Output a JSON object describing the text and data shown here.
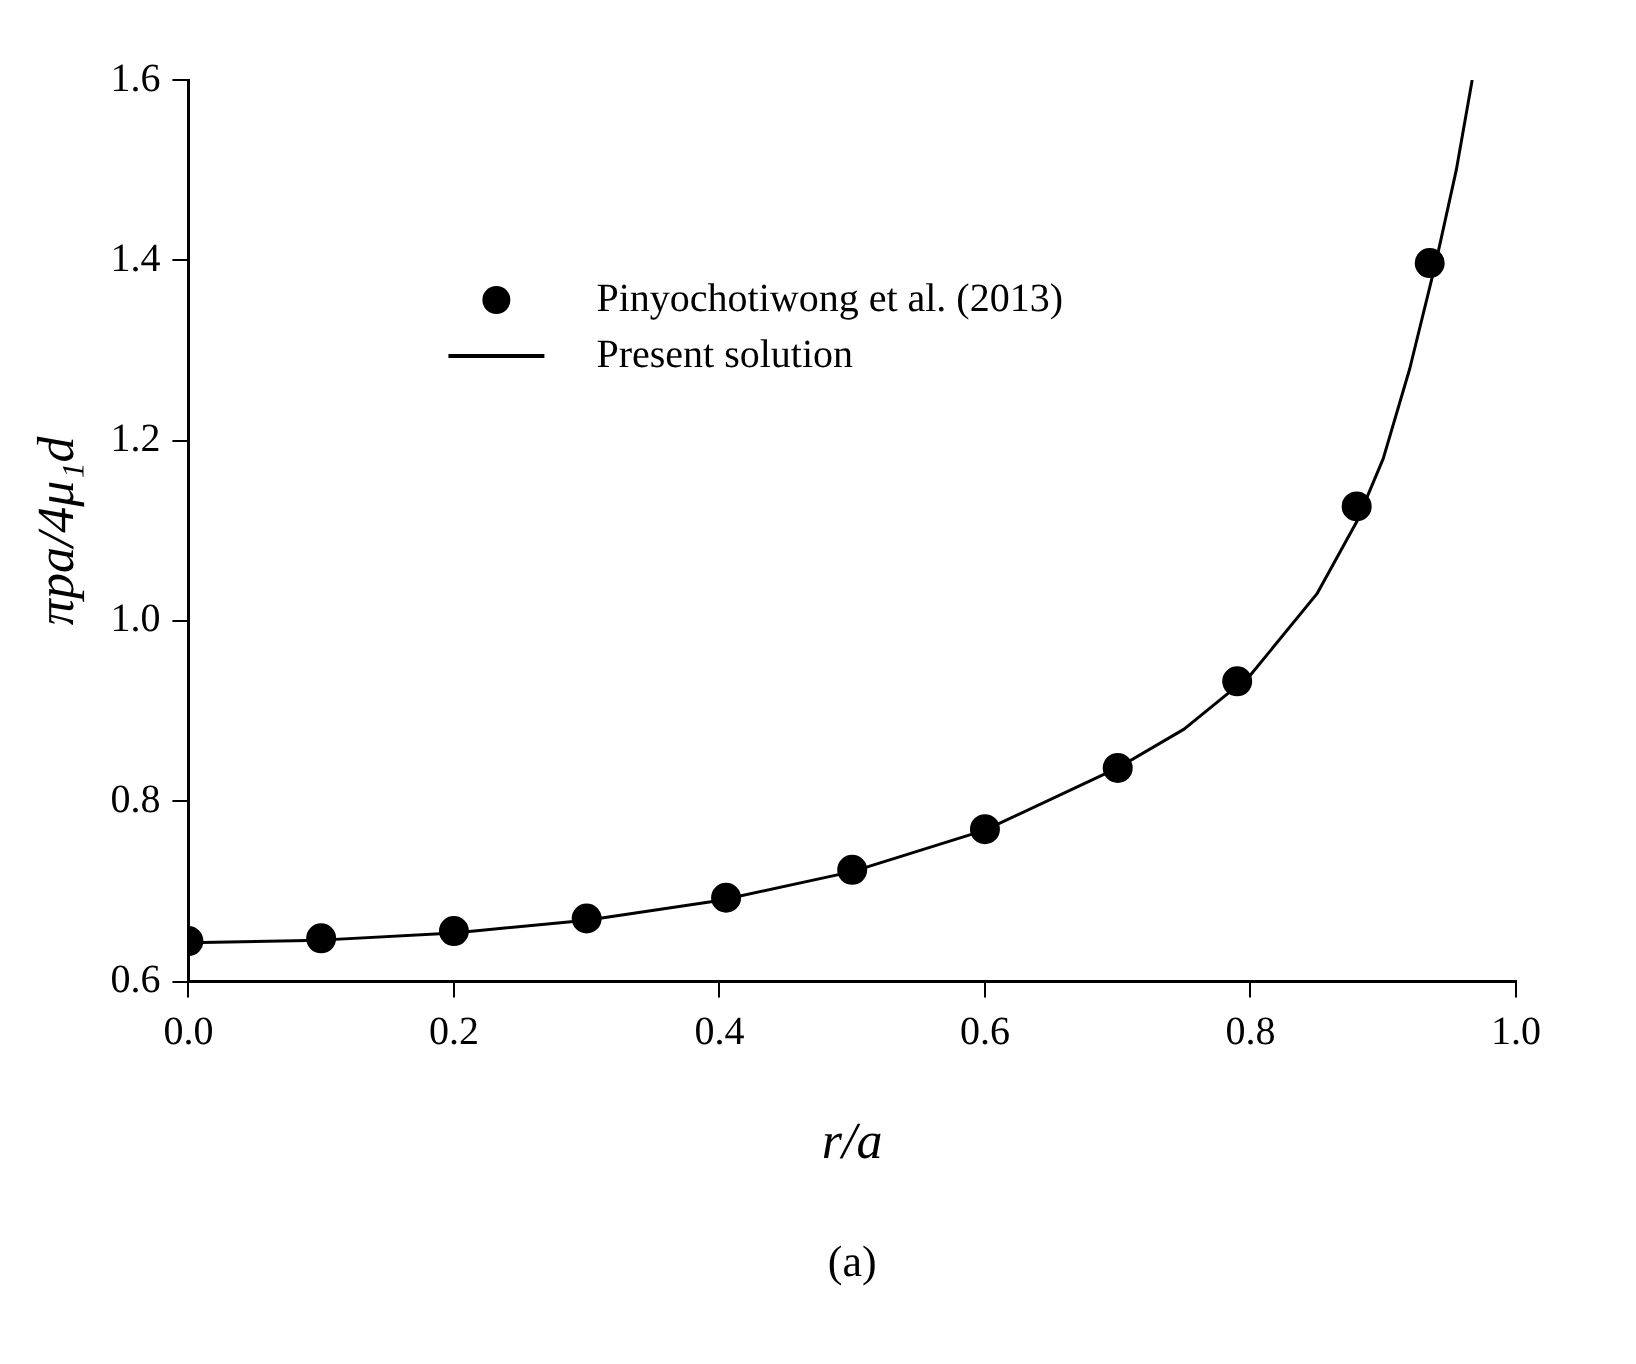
{
  "chart_data": {
    "type": "line",
    "xlabel": "r/a",
    "ylabel": "πpa/4μ₁d",
    "annotations": [
      "(a)"
    ],
    "xlim": [
      0,
      1
    ],
    "xticks": [
      {
        "value": 0,
        "label": "0.0"
      },
      {
        "value": 0.2,
        "label": "0.2"
      },
      {
        "value": 0.4,
        "label": "0.4"
      },
      {
        "value": 0.6,
        "label": "0.6"
      },
      {
        "value": 0.8,
        "label": "0.8"
      },
      {
        "value": 1,
        "label": "1.0"
      }
    ],
    "ylim": [
      0.6,
      1.6
    ],
    "yticks": [
      {
        "value": 0.6,
        "label": "0.6"
      },
      {
        "value": 0.8,
        "label": "0.8"
      },
      {
        "value": 1,
        "label": "1.0"
      },
      {
        "value": 1.2,
        "label": "1.2"
      },
      {
        "value": 1.4,
        "label": "1.4"
      },
      {
        "value": 1.6,
        "label": "1.6"
      }
    ],
    "grid": false,
    "legend": "top left",
    "series": [
      {
        "name": "Pinyochotiwong et al. (2013)",
        "type": "scatter",
        "marker": "circle",
        "color": "#000000",
        "x": [
          0,
          0.1,
          0.2,
          0.3,
          0.405,
          0.5,
          0.6,
          0.7,
          0.79,
          0.88,
          0.935
        ],
        "values": [
          0.645,
          0.648,
          0.656,
          0.67,
          0.693,
          0.724,
          0.769,
          0.837,
          0.933,
          1.127,
          1.397
        ]
      },
      {
        "name": "Present solution",
        "marker": "none",
        "line_style": "solid",
        "color": "#000000",
        "x": [
          0,
          0.1,
          0.2,
          0.3,
          0.4,
          0.5,
          0.6,
          0.7,
          0.75,
          0.8,
          0.85,
          0.88,
          0.9,
          0.92,
          0.94,
          0.955,
          0.967
        ],
        "values": [
          0.643,
          0.646,
          0.654,
          0.668,
          0.69,
          0.722,
          0.768,
          0.837,
          0.88,
          0.94,
          1.03,
          1.11,
          1.18,
          1.28,
          1.4,
          1.5,
          1.6
        ]
      }
    ]
  }
}
